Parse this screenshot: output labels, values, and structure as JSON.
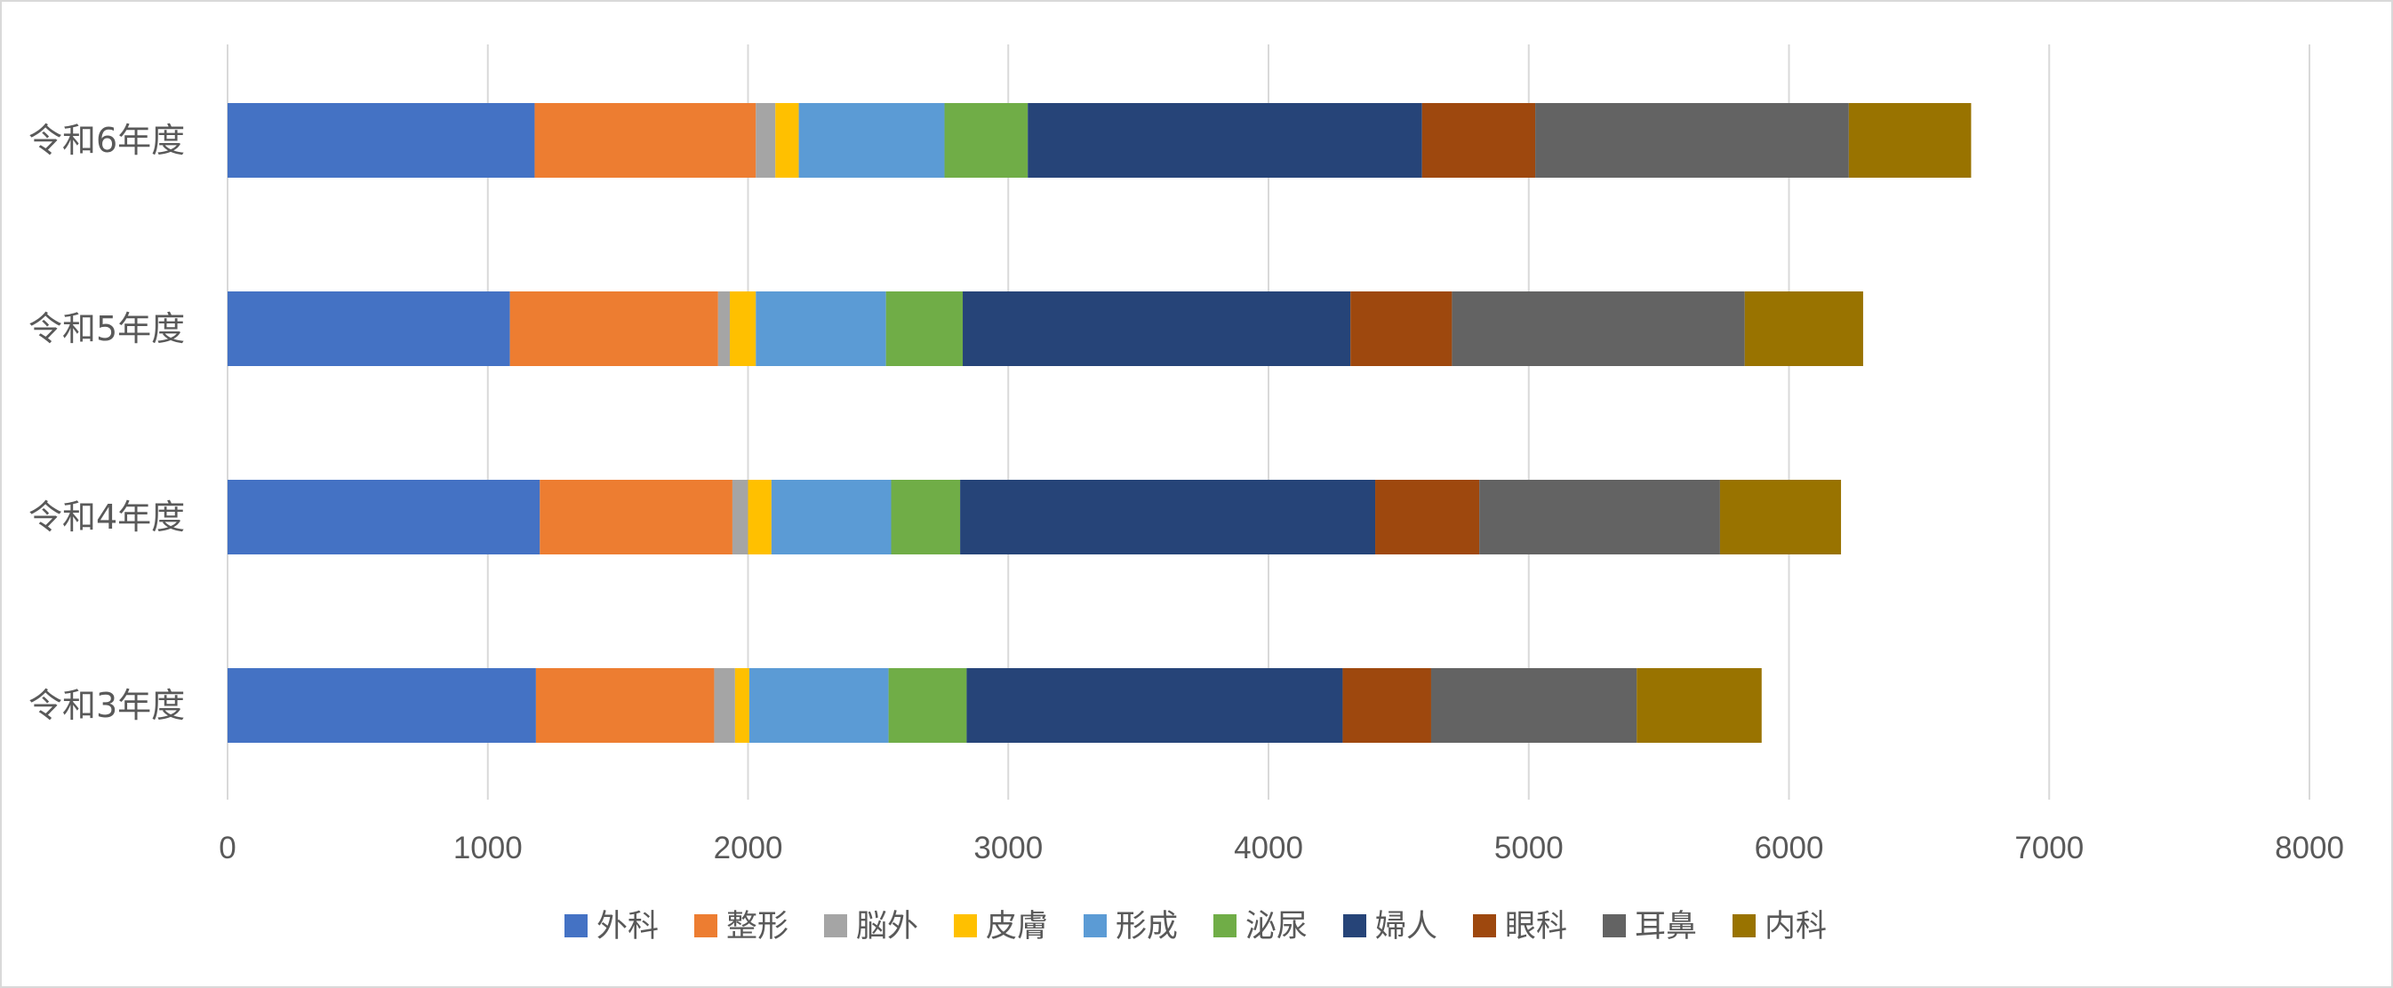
{
  "chart_data": {
    "type": "bar",
    "orientation": "horizontal",
    "stacked": true,
    "categories": [
      "令和3年度",
      "令和4年度",
      "令和5年度",
      "令和6年度"
    ],
    "xlim": [
      0,
      8000
    ],
    "xticks": [
      0,
      1000,
      2000,
      3000,
      4000,
      5000,
      6000,
      7000,
      8000
    ],
    "grid": true,
    "legend_position": "bottom",
    "series": [
      {
        "name": "外科",
        "color": "#4472C4",
        "values": [
          1185,
          1200,
          1085,
          1180
        ]
      },
      {
        "name": "整形",
        "color": "#ED7D31",
        "values": [
          685,
          740,
          800,
          850
        ]
      },
      {
        "name": "脳外",
        "color": "#A5A5A5",
        "values": [
          80,
          60,
          45,
          75
        ]
      },
      {
        "name": "皮膚",
        "color": "#FFC000",
        "values": [
          55,
          90,
          100,
          90
        ]
      },
      {
        "name": "形成",
        "color": "#5B9BD5",
        "values": [
          535,
          460,
          500,
          560
        ]
      },
      {
        "name": "泌尿",
        "color": "#70AD47",
        "values": [
          300,
          265,
          295,
          320
        ]
      },
      {
        "name": "婦人",
        "color": "#264478",
        "values": [
          1445,
          1595,
          1490,
          1515
        ]
      },
      {
        "name": "眼科",
        "color": "#9E480E",
        "values": [
          340,
          400,
          390,
          435
        ]
      },
      {
        "name": "耳鼻",
        "color": "#636363",
        "values": [
          790,
          925,
          1125,
          1205
        ]
      },
      {
        "name": "内科",
        "color": "#997300",
        "values": [
          480,
          465,
          455,
          470
        ]
      }
    ]
  }
}
